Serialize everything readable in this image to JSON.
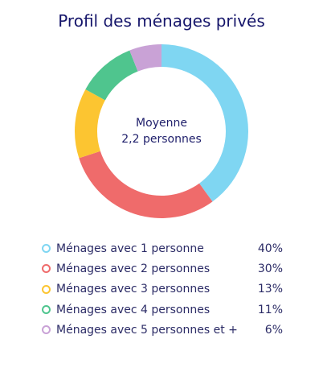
{
  "chart_data": {
    "type": "pie",
    "title": "Profil des ménages privés",
    "center_label": [
      "Moyenne",
      "2,2 personnes"
    ],
    "categories": [
      "Ménages avec 1 personne",
      "Ménages avec 2 personnes",
      "Ménages avec 3 personnes",
      "Ménages avec 4 personnes",
      "Ménages avec 5 personnes et +"
    ],
    "values": [
      40,
      30,
      13,
      11,
      6
    ],
    "value_labels": [
      "40%",
      "30%",
      "13%",
      "11%",
      "6%"
    ],
    "colors": [
      "#7fd6f2",
      "#ef6b6b",
      "#fcc531",
      "#4fc58e",
      "#c9a2d6"
    ],
    "legend_position": "bottom"
  }
}
